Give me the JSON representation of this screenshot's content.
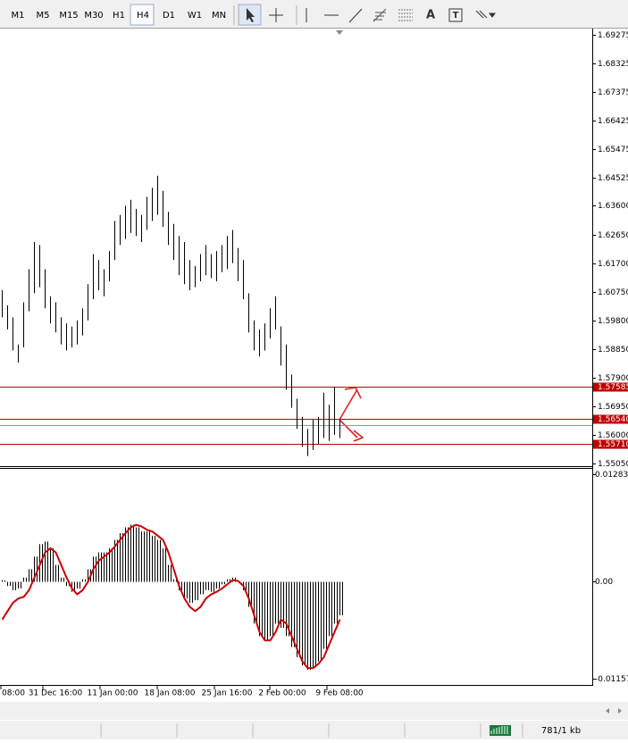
{
  "toolbar": {
    "timeframes": [
      "M1",
      "M5",
      "M15",
      "M30",
      "H1",
      "H4",
      "D1",
      "W1",
      "MN"
    ],
    "selected": "H4"
  },
  "chart_data": [
    {
      "type": "ohlc",
      "high": [
        1.608,
        1.603,
        1.599,
        1.59,
        1.604,
        1.615,
        1.624,
        1.623,
        1.615,
        1.606,
        1.604,
        1.599,
        1.597,
        1.596,
        1.598,
        1.602,
        1.61,
        1.62,
        1.618,
        1.615,
        1.621,
        1.631,
        1.633,
        1.636,
        1.638,
        1.635,
        1.633,
        1.639,
        1.642,
        1.646,
        1.641,
        1.634,
        1.63,
        1.626,
        1.624,
        1.618,
        1.616,
        1.62,
        1.623,
        1.62,
        1.621,
        1.623,
        1.626,
        1.628,
        1.622,
        1.618,
        1.607,
        1.598,
        1.595,
        1.597,
        1.602,
        1.606,
        1.596,
        1.59,
        1.58,
        1.572,
        1.566,
        1.562,
        1.565,
        1.566,
        1.574,
        1.57,
        1.576,
        1.565
      ],
      "low": [
        1.599,
        1.595,
        1.588,
        1.584,
        1.589,
        1.601,
        1.607,
        1.609,
        1.602,
        1.597,
        1.594,
        1.59,
        1.588,
        1.589,
        1.59,
        1.593,
        1.598,
        1.605,
        1.608,
        1.606,
        1.611,
        1.618,
        1.623,
        1.625,
        1.627,
        1.626,
        1.624,
        1.628,
        1.631,
        1.633,
        1.629,
        1.623,
        1.618,
        1.613,
        1.61,
        1.608,
        1.609,
        1.611,
        1.613,
        1.612,
        1.611,
        1.614,
        1.615,
        1.617,
        1.611,
        1.605,
        1.594,
        1.588,
        1.586,
        1.588,
        1.592,
        1.595,
        1.583,
        1.575,
        1.569,
        1.562,
        1.556,
        1.553,
        1.555,
        1.557,
        1.559,
        1.558,
        1.56,
        1.559
      ],
      "color": "#000000",
      "ylim": [
        1.5505,
        1.69275
      ],
      "yticks": [
        1.69275,
        1.68325,
        1.67375,
        1.66425,
        1.65475,
        1.64525,
        {
          "value": 1.636,
          "label": "1.63600"
        },
        {
          "value": 1.6265,
          "label": "1.62650"
        },
        {
          "value": 1.617,
          "label": "1.61700"
        },
        {
          "value": 1.6075,
          "label": "1.60750"
        },
        {
          "value": 1.598,
          "label": "1.59800"
        },
        {
          "value": 1.5885,
          "label": "1.58850"
        },
        {
          "value": 1.579,
          "label": "1.57900"
        },
        {
          "value": 1.5695,
          "label": "1.56950"
        },
        {
          "value": 1.56,
          "label": "1.56000"
        },
        {
          "value": 1.5505,
          "label": "1.55050"
        }
      ],
      "levels": [
        1.57585,
        {
          "value": 1.5654,
          "label": "1.56540"
        },
        {
          "value": 1.5571,
          "label": "1.55710"
        }
      ],
      "level_color": "#c00000",
      "bid_line": 1.5631,
      "x_labels": [
        "08:00",
        "31 Dec 16:00",
        "11 Jan 00:00",
        "18 Jan 08:00",
        "25 Jan 16:00",
        "2 Feb 00:00",
        "9 Feb 08:00"
      ]
    },
    {
      "type": "macd",
      "values": [
        0.0002,
        -0.0005,
        -0.001,
        -0.0008,
        0.0005,
        0.0015,
        0.003,
        0.0045,
        0.0048,
        0.004,
        0.002,
        0.0005,
        -0.0005,
        -0.0012,
        -0.0008,
        0.0003,
        0.0015,
        0.003,
        0.0035,
        0.0035,
        0.004,
        0.005,
        0.0058,
        0.0065,
        0.0068,
        0.0065,
        0.006,
        0.006,
        0.0055,
        0.005,
        0.004,
        0.002,
        0.0003,
        -0.001,
        -0.002,
        -0.0025,
        -0.0022,
        -0.0015,
        -0.001,
        -0.0012,
        -0.0008,
        -0.0003,
        0.0003,
        0.0005,
        0,
        -0.001,
        -0.003,
        -0.005,
        -0.0065,
        -0.007,
        -0.0065,
        -0.005,
        -0.0055,
        -0.0065,
        -0.0078,
        -0.009,
        -0.01,
        -0.0105,
        -0.0102,
        -0.0095,
        -0.008,
        -0.0065,
        -0.005,
        -0.004
      ],
      "signal": [
        -0.0045,
        -0.0035,
        -0.0025,
        -0.002,
        -0.0018,
        -0.001,
        0.0005,
        0.002,
        0.0035,
        0.004,
        0.0035,
        0.002,
        0.0005,
        -0.0008,
        -0.0015,
        -0.001,
        0,
        0.0015,
        0.0025,
        0.003,
        0.0035,
        0.0042,
        0.005,
        0.0058,
        0.0065,
        0.0068,
        0.0066,
        0.0062,
        0.006,
        0.0055,
        0.005,
        0.0035,
        0.0015,
        -0.0005,
        -0.002,
        -0.003,
        -0.0035,
        -0.003,
        -0.002,
        -0.0015,
        -0.0012,
        -0.0008,
        -0.0003,
        0.0002,
        0.0001,
        -0.0005,
        -0.002,
        -0.004,
        -0.006,
        -0.007,
        -0.007,
        -0.006,
        -0.0045,
        -0.005,
        -0.0065,
        -0.008,
        -0.0095,
        -0.0103,
        -0.0103,
        -0.0098,
        -0.009,
        -0.0075,
        -0.006,
        -0.0045
      ],
      "color": "#000000",
      "signal_color": "#cc0000",
      "ylim": [
        -0.01157,
        0.012837
      ],
      "yticks": [
        0.012837,
        {
          "value": 0,
          "label": "0.00"
        },
        -0.01157
      ]
    }
  ],
  "status": {
    "traffic": "781/1 kb"
  }
}
